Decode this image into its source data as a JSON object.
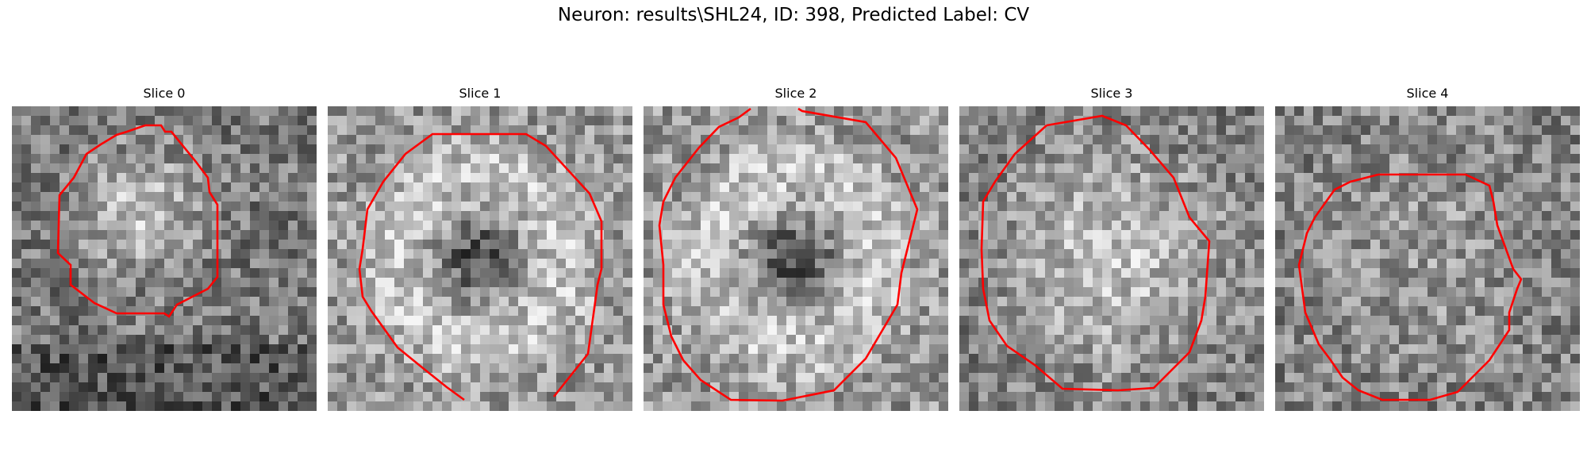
{
  "suptitle": "Neuron: results\\SHL24, ID: 398, Predicted Label: CV",
  "contour_color": "#ff0000",
  "panels": [
    {
      "title": "Slice 0",
      "icon": "grayscale-microscopy-slice",
      "seed": 11,
      "texture": "blob-bright"
    },
    {
      "title": "Slice 1",
      "icon": "grayscale-microscopy-slice",
      "seed": 23,
      "texture": "ring-dark-center"
    },
    {
      "title": "Slice 2",
      "icon": "grayscale-microscopy-slice",
      "seed": 37,
      "texture": "ring-dark-center"
    },
    {
      "title": "Slice 3",
      "icon": "grayscale-microscopy-slice",
      "seed": 41,
      "texture": "blob-bright-large"
    },
    {
      "title": "Slice 4",
      "icon": "grayscale-microscopy-slice",
      "seed": 53,
      "texture": "noisy"
    }
  ]
}
